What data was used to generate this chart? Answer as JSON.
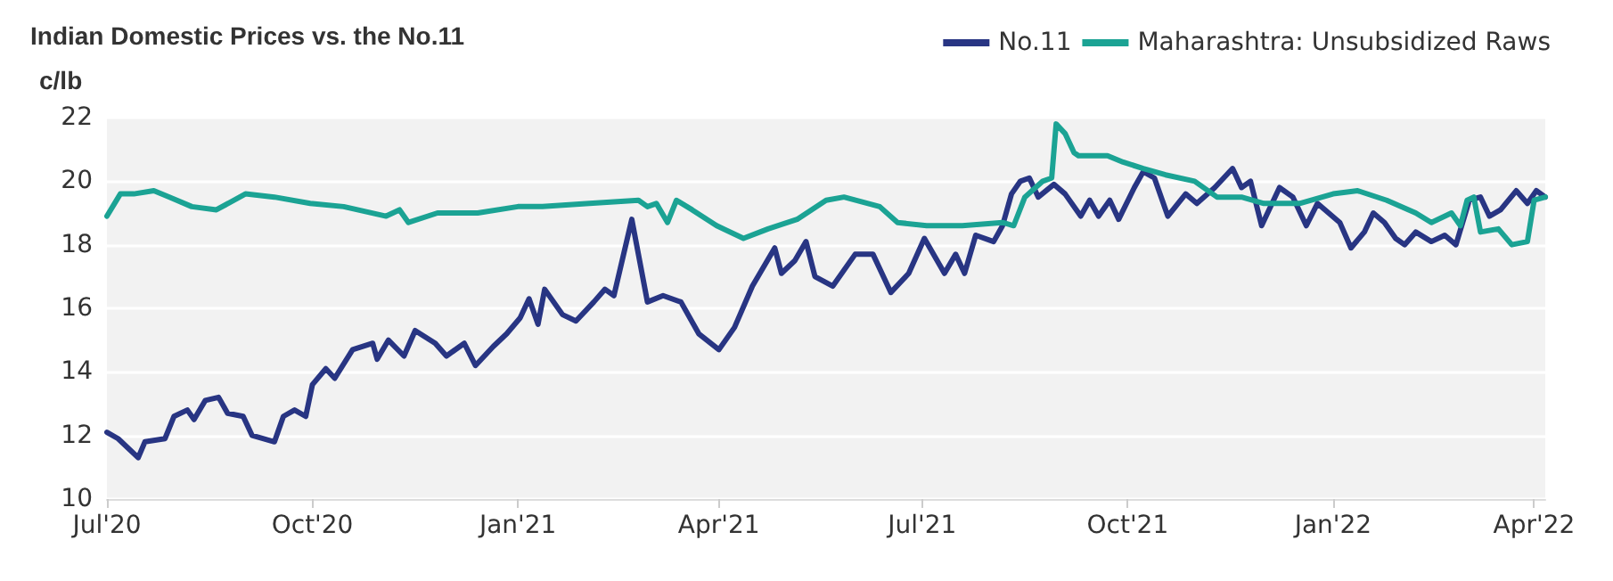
{
  "chart_data": {
    "type": "line",
    "title": "Indian Domestic Prices vs. the No.11",
    "ylabel": "c/lb",
    "xlim": [
      "2020-07-01",
      "2022-04-06"
    ],
    "xticks": [
      {
        "value": "2020-07-01",
        "label": "Jul'20"
      },
      {
        "value": "2020-10-01",
        "label": "Oct'20"
      },
      {
        "value": "2021-01-01",
        "label": "Jan'21"
      },
      {
        "value": "2021-04-01",
        "label": "Apr'21"
      },
      {
        "value": "2021-07-01",
        "label": "Jul'21"
      },
      {
        "value": "2021-10-01",
        "label": "Oct'21"
      },
      {
        "value": "2022-01-01",
        "label": "Jan'22"
      },
      {
        "value": "2022-04-01",
        "label": "Apr'22"
      }
    ],
    "ylim": [
      10,
      22
    ],
    "yticks": [
      10,
      12,
      14,
      16,
      18,
      20,
      22
    ],
    "grid": "y",
    "legend": "top right",
    "line_style": "solid",
    "marker": "none",
    "series": [
      {
        "name": "No.11",
        "color": "#283583",
        "x": [
          "2020-07-01",
          "2020-07-06",
          "2020-07-15",
          "2020-07-18",
          "2020-07-27",
          "2020-07-31",
          "2020-08-06",
          "2020-08-09",
          "2020-08-14",
          "2020-08-20",
          "2020-08-24",
          "2020-08-31",
          "2020-09-04",
          "2020-09-14",
          "2020-09-18",
          "2020-09-23",
          "2020-09-28",
          "2020-10-01",
          "2020-10-07",
          "2020-10-11",
          "2020-10-19",
          "2020-10-28",
          "2020-10-30",
          "2020-11-04",
          "2020-11-11",
          "2020-11-16",
          "2020-11-25",
          "2020-11-30",
          "2020-12-08",
          "2020-12-13",
          "2020-12-21",
          "2020-12-27",
          "2021-01-02",
          "2021-01-06",
          "2021-01-10",
          "2021-01-13",
          "2021-01-17",
          "2021-01-21",
          "2021-01-27",
          "2021-02-04",
          "2021-02-09",
          "2021-02-13",
          "2021-02-21",
          "2021-02-28",
          "2021-03-07",
          "2021-03-15",
          "2021-03-23",
          "2021-04-01",
          "2021-04-08",
          "2021-04-16",
          "2021-04-26",
          "2021-04-29",
          "2021-05-05",
          "2021-05-10",
          "2021-05-14",
          "2021-05-22",
          "2021-06-01",
          "2021-06-09",
          "2021-06-17",
          "2021-06-25",
          "2021-07-02",
          "2021-07-11",
          "2021-07-16",
          "2021-07-20",
          "2021-07-25",
          "2021-08-02",
          "2021-08-06",
          "2021-08-10",
          "2021-08-14",
          "2021-08-18",
          "2021-08-22",
          "2021-08-29",
          "2021-09-03",
          "2021-09-10",
          "2021-09-14",
          "2021-09-18",
          "2021-09-23",
          "2021-09-27",
          "2021-10-04",
          "2021-10-08",
          "2021-10-13",
          "2021-10-19",
          "2021-10-27",
          "2021-11-01",
          "2021-11-09",
          "2021-11-17",
          "2021-11-21",
          "2021-11-25",
          "2021-11-30",
          "2021-12-08",
          "2021-12-14",
          "2021-12-20",
          "2021-12-25",
          "2022-01-04",
          "2022-01-09",
          "2022-01-15",
          "2022-01-19",
          "2022-01-24",
          "2022-01-29",
          "2022-02-02",
          "2022-02-07",
          "2022-02-14",
          "2022-02-20",
          "2022-02-25",
          "2022-03-03",
          "2022-03-08",
          "2022-03-12",
          "2022-03-17",
          "2022-03-24",
          "2022-03-29",
          "2022-04-02",
          "2022-04-06"
        ],
        "values": [
          12.1,
          11.9,
          11.3,
          11.8,
          11.9,
          12.6,
          12.8,
          12.5,
          13.1,
          13.2,
          12.7,
          12.6,
          12.0,
          11.8,
          12.6,
          12.8,
          12.6,
          13.6,
          14.1,
          13.8,
          14.7,
          14.9,
          14.4,
          15.0,
          14.5,
          15.3,
          14.9,
          14.5,
          14.9,
          14.2,
          14.8,
          15.2,
          15.7,
          16.3,
          15.5,
          16.6,
          16.2,
          15.8,
          15.6,
          16.2,
          16.6,
          16.4,
          18.8,
          16.2,
          16.4,
          16.2,
          15.2,
          14.7,
          15.4,
          16.7,
          17.9,
          17.1,
          17.5,
          18.1,
          17.0,
          16.7,
          17.7,
          17.7,
          16.5,
          17.1,
          18.2,
          17.1,
          17.7,
          17.1,
          18.3,
          18.1,
          18.6,
          19.6,
          20.0,
          20.1,
          19.5,
          19.9,
          19.6,
          18.9,
          19.4,
          18.9,
          19.4,
          18.8,
          19.8,
          20.3,
          20.1,
          18.9,
          19.6,
          19.3,
          19.8,
          20.4,
          19.8,
          20.0,
          18.6,
          19.8,
          19.5,
          18.6,
          19.3,
          18.7,
          17.9,
          18.4,
          19.0,
          18.7,
          18.2,
          18.0,
          18.4,
          18.1,
          18.3,
          18.0,
          19.4,
          19.5,
          18.9,
          19.1,
          19.7,
          19.3,
          19.7,
          19.5
        ]
      },
      {
        "name": "Maharashtra: Unsubsidized Raws",
        "color": "#1ba394",
        "x": [
          "2020-07-01",
          "2020-07-07",
          "2020-07-13",
          "2020-07-22",
          "2020-07-29",
          "2020-08-08",
          "2020-08-19",
          "2020-09-01",
          "2020-09-14",
          "2020-09-30",
          "2020-10-15",
          "2020-11-03",
          "2020-11-09",
          "2020-11-13",
          "2020-11-26",
          "2020-12-14",
          "2021-01-01",
          "2021-01-12",
          "2021-02-02",
          "2021-02-24",
          "2021-02-28",
          "2021-03-04",
          "2021-03-09",
          "2021-03-13",
          "2021-03-20",
          "2021-03-31",
          "2021-04-12",
          "2021-04-23",
          "2021-05-06",
          "2021-05-19",
          "2021-05-27",
          "2021-06-12",
          "2021-06-20",
          "2021-07-03",
          "2021-07-19",
          "2021-08-06",
          "2021-08-11",
          "2021-08-16",
          "2021-08-24",
          "2021-08-28",
          "2021-08-30",
          "2021-09-03",
          "2021-09-07",
          "2021-09-09",
          "2021-09-22",
          "2021-09-29",
          "2021-10-08",
          "2021-10-18",
          "2021-10-31",
          "2021-11-10",
          "2021-11-21",
          "2021-12-01",
          "2021-12-17",
          "2022-01-01",
          "2022-01-12",
          "2022-01-25",
          "2022-02-07",
          "2022-02-14",
          "2022-02-23",
          "2022-02-27",
          "2022-03-02",
          "2022-03-05",
          "2022-03-08",
          "2022-03-16",
          "2022-03-22",
          "2022-03-29",
          "2022-04-01",
          "2022-04-06"
        ],
        "values": [
          18.9,
          19.6,
          19.6,
          19.7,
          19.5,
          19.2,
          19.1,
          19.6,
          19.5,
          19.3,
          19.2,
          18.9,
          19.1,
          18.7,
          19.0,
          19.0,
          19.2,
          19.2,
          19.3,
          19.4,
          19.2,
          19.3,
          18.7,
          19.4,
          19.1,
          18.6,
          18.2,
          18.5,
          18.8,
          19.4,
          19.5,
          19.2,
          18.7,
          18.6,
          18.6,
          18.7,
          18.6,
          19.5,
          20.0,
          20.1,
          21.8,
          21.5,
          20.9,
          20.8,
          20.8,
          20.6,
          20.4,
          20.2,
          20.0,
          19.5,
          19.5,
          19.3,
          19.3,
          19.6,
          19.7,
          19.4,
          19.0,
          18.7,
          19.0,
          18.6,
          19.4,
          19.5,
          18.4,
          18.5,
          18.0,
          18.1,
          19.4,
          19.5
        ]
      }
    ]
  }
}
